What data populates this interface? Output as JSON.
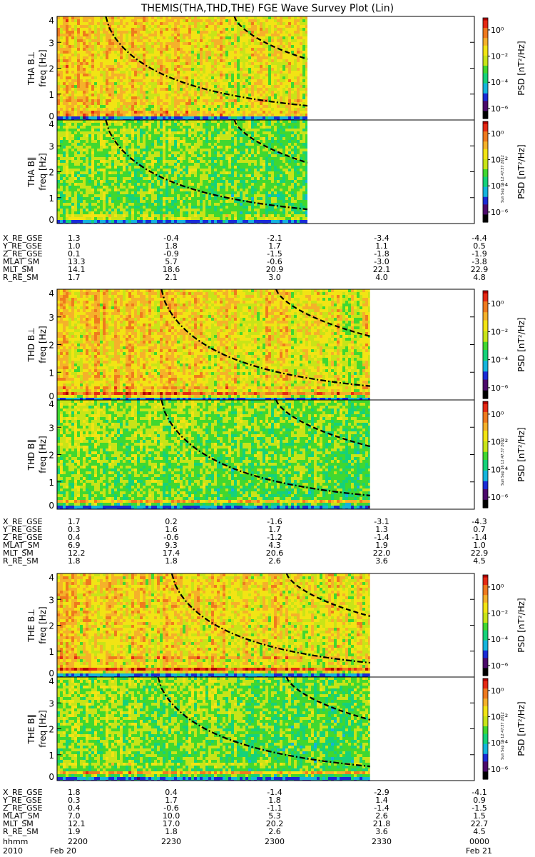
{
  "title": "THEMIS(THA,THD,THE) FGE Wave Survey Plot (Lin)",
  "colorbar_label": "PSD [nT²/Hz]",
  "colorbar_ticks": [
    "10⁰",
    "10⁻²",
    "10⁻⁴",
    "10⁻⁶"
  ],
  "stamp": "Sun Sep 16 12:47:37 2012",
  "colormap": [
    "#000000",
    "#4b0a6b",
    "#1a2bd6",
    "#14b4dc",
    "#15d27a",
    "#40d830",
    "#c8e418",
    "#f2e414",
    "#f5b12a",
    "#ef7a1e",
    "#e52a14",
    "#b00000"
  ],
  "time_axis": {
    "hhmm_label": "hhmm",
    "year_label": "2010",
    "ticks_hhmm": [
      "2200",
      "2230",
      "2300",
      "2330",
      "0000"
    ],
    "date_left": "Feb 20",
    "date_right": "Feb 21"
  },
  "chart_data": [
    {
      "type": "heatmap",
      "panel": "THA B⊥",
      "ylabel": "THA B⊥",
      "ylabel2": "freq [Hz]",
      "ylim": [
        0,
        4
      ],
      "yticks": [
        "0",
        "1",
        "2",
        "3",
        "4"
      ],
      "data_end": "2312",
      "ridge_bands_hz": [
        0.25,
        0.7
      ],
      "curves": [
        {
          "style": "dash-dot",
          "start": [
            "2214",
            4.0
          ],
          "end": [
            "2312",
            0.55
          ]
        },
        {
          "style": "dashed",
          "start": [
            "2251",
            4.0
          ],
          "end": [
            "2312",
            2.35
          ]
        }
      ],
      "zlabel": "PSD [nT²/Hz]",
      "zscale": "log"
    },
    {
      "type": "heatmap",
      "panel": "THA B∥",
      "ylabel": "THA B∥",
      "ylabel2": "freq [Hz]",
      "ylim": [
        0,
        4
      ],
      "yticks": [
        "0",
        "1",
        "2",
        "3",
        "4"
      ],
      "data_end": "2312",
      "ridge_bands_hz": [
        0.25
      ],
      "curves": [
        {
          "style": "dash-dot",
          "start": [
            "2214",
            4.0
          ],
          "end": [
            "2312",
            0.55
          ]
        },
        {
          "style": "dashed",
          "start": [
            "2251",
            4.0
          ],
          "end": [
            "2312",
            2.35
          ]
        }
      ],
      "zlabel": "PSD [nT²/Hz]",
      "zscale": "log"
    },
    {
      "type": "table",
      "panel": "THA ephemeris",
      "rows": [
        {
          "label": "X_RE_GSE",
          "values": [
            "1.3",
            "-0.4",
            "-2.1",
            "-3.4",
            "-4.4"
          ]
        },
        {
          "label": "Y_RE_GSE",
          "values": [
            "1.0",
            "1.8",
            "1.7",
            "1.1",
            "0.5"
          ]
        },
        {
          "label": "Z_RE_GSE",
          "values": [
            "0.1",
            "-0.9",
            "-1.5",
            "-1.8",
            "-1.9"
          ]
        },
        {
          "label": "MLAT_SM",
          "values": [
            "13.3",
            "5.7",
            "-0.6",
            "-3.0",
            "-3.8"
          ]
        },
        {
          "label": "MLT_SM",
          "values": [
            "14.1",
            "18.6",
            "20.9",
            "22.1",
            "22.9"
          ]
        },
        {
          "label": "R_RE_SM",
          "values": [
            "1.7",
            "2.1",
            "3.0",
            "4.0",
            "4.8"
          ]
        }
      ]
    },
    {
      "type": "heatmap",
      "panel": "THD B⊥",
      "ylabel": "THD B⊥",
      "ylabel2": "freq [Hz]",
      "ylim": [
        0,
        4
      ],
      "yticks": [
        "0",
        "1",
        "2",
        "3",
        "4"
      ],
      "data_end": "2330",
      "ridge_bands_hz": [
        0.25,
        0.45,
        0.8
      ],
      "curves": [
        {
          "style": "dash-dot",
          "start": [
            "2230",
            4.0
          ],
          "end": [
            "2330",
            0.5
          ]
        },
        {
          "style": "dashed",
          "start": [
            "2303",
            4.0
          ],
          "end": [
            "2330",
            2.3
          ]
        }
      ],
      "zlabel": "PSD [nT²/Hz]",
      "zscale": "log"
    },
    {
      "type": "heatmap",
      "panel": "THD B∥",
      "ylabel": "THD B∥",
      "ylabel2": "freq [Hz]",
      "ylim": [
        0,
        4
      ],
      "yticks": [
        "0",
        "1",
        "2",
        "3",
        "4"
      ],
      "data_end": "2330",
      "ridge_bands_hz": [
        0.3
      ],
      "curves": [
        {
          "style": "dash-dot",
          "start": [
            "2230",
            4.0
          ],
          "end": [
            "2330",
            0.5
          ]
        },
        {
          "style": "dashed",
          "start": [
            "2303",
            4.0
          ],
          "end": [
            "2330",
            2.3
          ]
        }
      ],
      "zlabel": "PSD [nT²/Hz]",
      "zscale": "log"
    },
    {
      "type": "table",
      "panel": "THD ephemeris",
      "rows": [
        {
          "label": "X_RE_GSE",
          "values": [
            "1.7",
            "0.2",
            "-1.6",
            "-3.1",
            "-4.3"
          ]
        },
        {
          "label": "Y_RE_GSE",
          "values": [
            "0.3",
            "1.6",
            "1.7",
            "1.3",
            "0.7"
          ]
        },
        {
          "label": "Z_RE_GSE",
          "values": [
            "0.4",
            "-0.6",
            "-1.2",
            "-1.4",
            "-1.4"
          ]
        },
        {
          "label": "MLAT_SM",
          "values": [
            "6.9",
            "9.3",
            "4.3",
            "1.9",
            "1.0"
          ]
        },
        {
          "label": "MLT_SM",
          "values": [
            "12.2",
            "17.4",
            "20.6",
            "22.0",
            "22.9"
          ]
        },
        {
          "label": "R_RE_SM",
          "values": [
            "1.8",
            "1.8",
            "2.6",
            "3.6",
            "4.5"
          ]
        }
      ]
    },
    {
      "type": "heatmap",
      "panel": "THE B⊥",
      "ylabel": "THE B⊥",
      "ylabel2": "freq [Hz]",
      "ylim": [
        0,
        4
      ],
      "yticks": [
        "0",
        "1",
        "2",
        "3",
        "4"
      ],
      "data_end": "2330",
      "ridge_bands_hz": [
        0.3,
        0.75
      ],
      "curves": [
        {
          "style": "dash-dot",
          "start": [
            "2233",
            4.0
          ],
          "end": [
            "2330",
            0.55
          ]
        },
        {
          "style": "dashed",
          "start": [
            "2306",
            4.0
          ],
          "end": [
            "2330",
            2.35
          ]
        }
      ],
      "zlabel": "PSD [nT²/Hz]",
      "zscale": "log"
    },
    {
      "type": "heatmap",
      "panel": "THE B∥",
      "ylabel": "THE B∥",
      "ylabel2": "freq [Hz]",
      "ylim": [
        0,
        4
      ],
      "yticks": [
        "0",
        "1",
        "2",
        "3",
        "4"
      ],
      "data_end": "2330",
      "ridge_bands_hz": [
        0.3,
        0.6
      ],
      "curves": [
        {
          "style": "dash-dot",
          "start": [
            "2229",
            4.0
          ],
          "end": [
            "2330",
            0.55
          ]
        },
        {
          "style": "dashed",
          "start": [
            "2306",
            4.0
          ],
          "end": [
            "2330",
            2.35
          ]
        }
      ],
      "zlabel": "PSD [nT²/Hz]",
      "zscale": "log"
    },
    {
      "type": "table",
      "panel": "THE ephemeris",
      "rows": [
        {
          "label": "X_RE_GSE",
          "values": [
            "1.8",
            "0.4",
            "-1.4",
            "-2.9",
            "-4.1"
          ]
        },
        {
          "label": "Y_RE_GSE",
          "values": [
            "0.3",
            "1.7",
            "1.8",
            "1.4",
            "0.9"
          ]
        },
        {
          "label": "Z_RE_GSE",
          "values": [
            "0.4",
            "-0.6",
            "-1.1",
            "-1.4",
            "-1.5"
          ]
        },
        {
          "label": "MLAT_SM",
          "values": [
            "7.0",
            "10.0",
            "5.3",
            "2.6",
            "1.5"
          ]
        },
        {
          "label": "MLT_SM",
          "values": [
            "12.1",
            "17.0",
            "20.2",
            "21.8",
            "22.7"
          ]
        },
        {
          "label": "R_RE_SM",
          "values": [
            "1.9",
            "1.8",
            "2.6",
            "3.6",
            "4.5"
          ]
        }
      ]
    }
  ]
}
